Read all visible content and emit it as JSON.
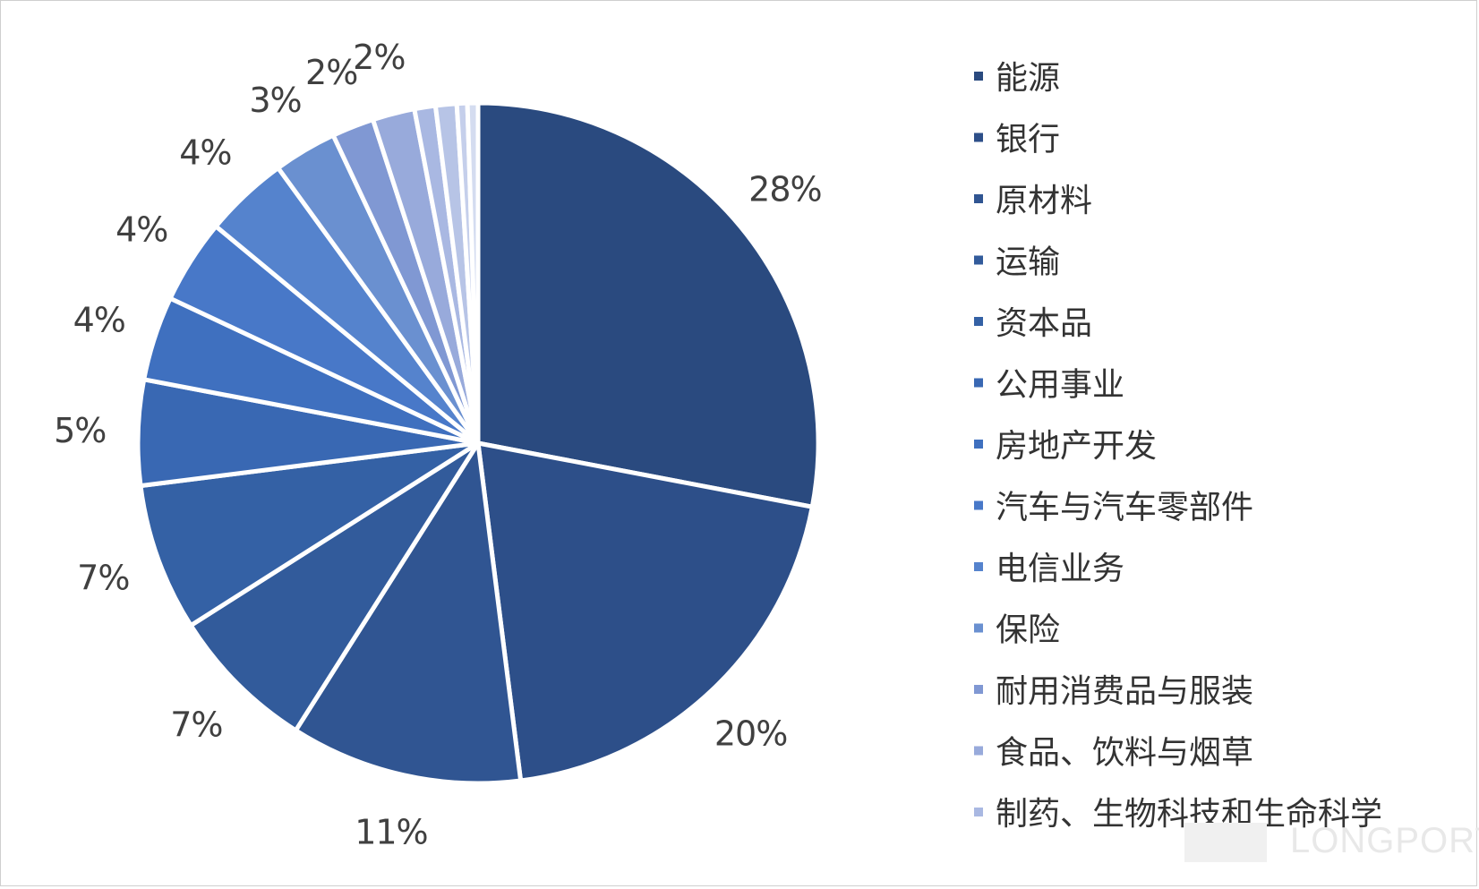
{
  "chart_data": {
    "type": "pie",
    "title": "",
    "legend_position": "right",
    "categories": [
      "能源",
      "银行",
      "原材料",
      "运输",
      "资本品",
      "公用事业",
      "房地产开发",
      "汽车与汽车零部件",
      "电信业务",
      "保险",
      "耐用消费品与服装",
      "食品、饮料与烟草",
      "制药、生物科技和生命科学",
      "",
      "",
      ""
    ],
    "values": [
      28,
      20,
      11,
      7,
      7,
      5,
      4,
      4,
      4,
      3,
      2,
      2,
      1,
      1,
      0.5,
      0.5
    ],
    "labels": [
      "28%",
      "20%",
      "11%",
      "7%",
      "7%",
      "5%",
      "4%",
      "4%",
      "4%",
      "3%",
      "2%",
      "2%",
      "",
      "",
      "",
      ""
    ],
    "colors": [
      "#2a4a7f",
      "#2d4f89",
      "#305592",
      "#325b9b",
      "#3461a5",
      "#3968b3",
      "#3f70bf",
      "#4878c8",
      "#5583cd",
      "#6a90d0",
      "#8098d3",
      "#98aadb",
      "#a9b8e2",
      "#b7c4e6",
      "#c5cfeb",
      "#d4dcf0"
    ]
  },
  "watermark": {
    "text": "LONGPORT"
  }
}
